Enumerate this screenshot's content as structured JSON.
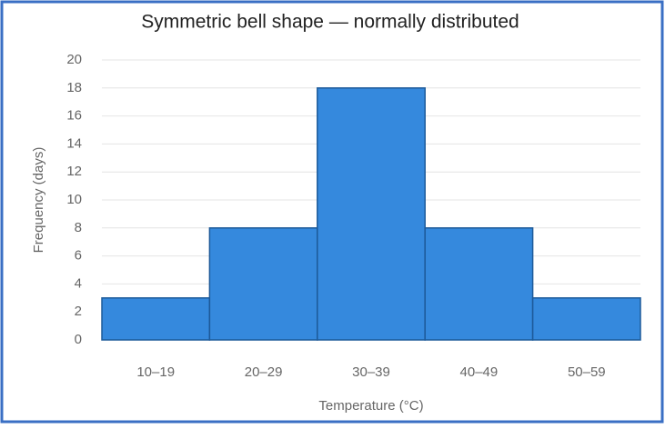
{
  "chart_data": {
    "type": "bar",
    "title": "Symmetric bell shape — normally distributed",
    "x_label": "Temperature (°C)",
    "y_label": "Frequency (days)",
    "categories": [
      "10–19",
      "20–29",
      "30–39",
      "40–49",
      "50–59"
    ],
    "values": [
      3,
      8,
      18,
      8,
      3
    ],
    "color": "#3589dd",
    "ylim": [
      0,
      20
    ],
    "yticks": [
      0,
      2,
      4,
      6,
      8,
      10,
      12,
      14,
      16,
      18,
      20
    ],
    "grid": true
  }
}
